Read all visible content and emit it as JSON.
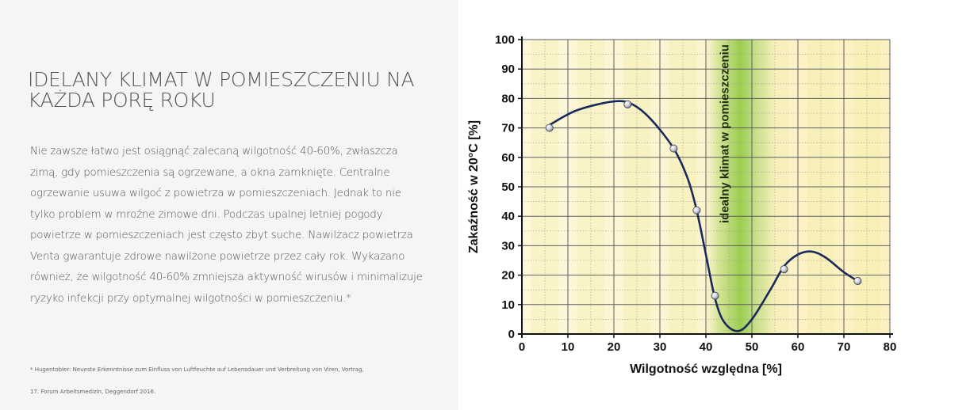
{
  "left": {
    "title": "IDELANY KLIMAT W POMIESZCZENIU NA KAŻDA PORĘ ROKU",
    "paragraph": "Nie zawsze łatwo jest osiągnąć zalecaną wilgotność 40-60%, zwłaszcza zimą, gdy pomieszczenia są ogrzewane, a okna zamknięte. Centralne ogrzewanie usuwa wilgoć z powietrza w pomieszczeniach. Jednak to nie tylko problem w mroźne zimowe dni. Podczas upalnej letniej pogody powietrze w pomieszczeniach jest często zbyt suche. Nawilżacz powietrza Venta gwarantuje zdrowe nawilżone powietrze przez cały rok. Wykazano również, że wilgotność 40-60% zmniejsza aktywność wirusów i minimalizuje ryzyko infekcji przy optymalnej wilgotności w pomieszczeniu.*",
    "footnote_line1": "* Hugentobler: Neueste Erkenntnisse zum Einfluss von Luftfeuchte auf Lebensdauer und Verbreitung von Viren, Vortrag,",
    "footnote_line2": "17. Forum Arbeitsmedizin, Deggendorf 2016."
  },
  "chart_data": {
    "type": "line",
    "title": "",
    "xlabel": "Wilgotność względna [%]",
    "ylabel": "Zakaźność w 20°C [%]",
    "xlim": [
      0,
      80
    ],
    "ylim": [
      0,
      100
    ],
    "xticks": [
      0,
      10,
      20,
      30,
      40,
      50,
      60,
      70,
      80
    ],
    "yticks": [
      0,
      10,
      20,
      30,
      40,
      50,
      60,
      70,
      80,
      90,
      100
    ],
    "grid": true,
    "series": [
      {
        "values_x": [
          6,
          23,
          33,
          38,
          42,
          57,
          73
        ],
        "values_y": [
          70,
          78,
          63,
          42,
          13,
          22,
          18
        ],
        "curve_x": [
          6,
          12,
          20,
          24,
          28,
          33,
          36,
          38,
          40,
          42,
          44,
          47,
          50,
          54,
          57,
          60,
          63,
          66,
          70,
          73
        ],
        "curve_y": [
          71,
          76,
          79,
          78,
          73,
          63,
          53,
          42,
          27,
          12,
          4,
          1,
          5,
          15,
          23,
          27,
          28,
          26,
          21,
          18
        ]
      }
    ],
    "annotation": "idealny klimat w pomieszczeniu",
    "ideal_band": [
      40,
      55
    ],
    "colors": {
      "curve": "#1a2a5c",
      "band": "#8cc63f",
      "background": "#fdf6d0"
    }
  }
}
